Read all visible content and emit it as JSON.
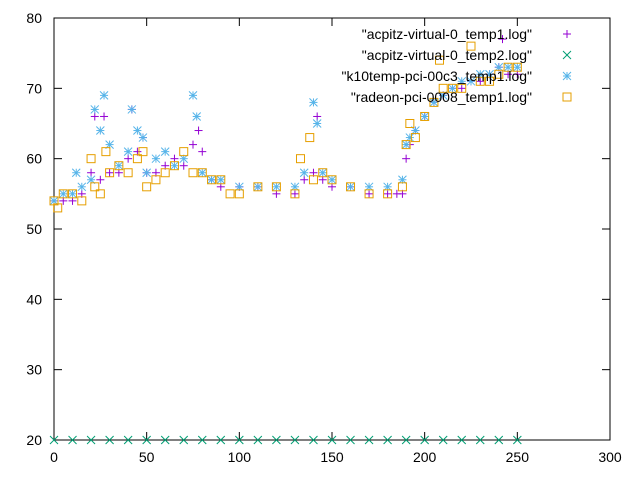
{
  "chart_data": {
    "type": "scatter",
    "title": "",
    "xlabel": "",
    "ylabel": "",
    "xlim": [
      0,
      300
    ],
    "ylim": [
      20,
      80
    ],
    "xticks": [
      0,
      50,
      100,
      150,
      200,
      250,
      300
    ],
    "yticks": [
      20,
      30,
      40,
      50,
      60,
      70,
      80
    ],
    "xtick_labels": [
      "0",
      "50",
      "100",
      "150",
      "200",
      "250",
      "300"
    ],
    "ytick_labels": [
      "20",
      "30",
      "40",
      "50",
      "60",
      "70",
      "80"
    ],
    "grid": false,
    "legend_position": "top-right",
    "series": [
      {
        "name": "\"acpitz-virtual-0_temp1.log\"",
        "marker": "plus",
        "color": "#9400d3",
        "x": [
          0,
          5,
          10,
          15,
          20,
          22,
          25,
          27,
          30,
          35,
          40,
          42,
          45,
          48,
          50,
          55,
          60,
          65,
          70,
          75,
          78,
          80,
          85,
          90,
          100,
          110,
          120,
          130,
          135,
          140,
          142,
          145,
          150,
          160,
          170,
          180,
          185,
          188,
          190,
          192,
          195,
          200,
          205,
          210,
          215,
          220,
          225,
          230,
          235,
          240,
          242,
          245,
          250
        ],
        "y": [
          54,
          54,
          54,
          55,
          58,
          66,
          57,
          66,
          58,
          58,
          60,
          67,
          61,
          63,
          58,
          58,
          59,
          60,
          59,
          62,
          64,
          61,
          57,
          56,
          56,
          56,
          55,
          55,
          57,
          58,
          66,
          57,
          56,
          56,
          55,
          55,
          55,
          55,
          60,
          62,
          64,
          66,
          68,
          69,
          70,
          70,
          71,
          71,
          72,
          73,
          77,
          72,
          72
        ]
      },
      {
        "name": "\"acpitz-virtual-0_temp2.log\"",
        "marker": "x",
        "color": "#009e73",
        "x": [
          0,
          10,
          20,
          30,
          40,
          50,
          60,
          70,
          80,
          90,
          100,
          110,
          120,
          130,
          140,
          150,
          160,
          170,
          180,
          190,
          200,
          210,
          220,
          230,
          240,
          250
        ],
        "y": [
          20,
          20,
          20,
          20,
          20,
          20,
          20,
          20,
          20,
          20,
          20,
          20,
          20,
          20,
          20,
          20,
          20,
          20,
          20,
          20,
          20,
          20,
          20,
          20,
          20,
          20
        ]
      },
      {
        "name": "\"k10temp-pci-00c3_temp1.log\"",
        "marker": "star",
        "color": "#56b4e9",
        "x": [
          0,
          5,
          10,
          12,
          15,
          20,
          22,
          25,
          27,
          30,
          35,
          40,
          42,
          45,
          48,
          50,
          55,
          60,
          65,
          70,
          75,
          77,
          80,
          85,
          90,
          100,
          110,
          120,
          130,
          135,
          140,
          142,
          145,
          150,
          160,
          170,
          180,
          188,
          190,
          192,
          195,
          200,
          205,
          210,
          215,
          220,
          225,
          230,
          235,
          240,
          245,
          250
        ],
        "y": [
          54,
          55,
          55,
          58,
          56,
          57,
          67,
          64,
          69,
          62,
          59,
          61,
          67,
          64,
          63,
          58,
          60,
          61,
          59,
          60,
          69,
          66,
          58,
          57,
          57,
          56,
          56,
          56,
          56,
          58,
          68,
          65,
          58,
          57,
          56,
          56,
          56,
          57,
          62,
          63,
          64,
          66,
          68,
          69,
          70,
          71,
          71,
          72,
          72,
          73,
          73,
          73
        ]
      },
      {
        "name": "\"radeon-pci-0008_temp1.log\"",
        "marker": "square",
        "color": "#e69f00",
        "x": [
          0,
          2,
          5,
          10,
          15,
          20,
          22,
          25,
          28,
          30,
          35,
          40,
          45,
          48,
          50,
          55,
          60,
          65,
          70,
          75,
          80,
          85,
          90,
          95,
          100,
          110,
          120,
          130,
          133,
          138,
          140,
          145,
          150,
          160,
          170,
          180,
          188,
          190,
          192,
          195,
          200,
          205,
          208,
          210,
          215,
          220,
          225,
          230,
          235,
          240,
          245,
          250
        ],
        "y": [
          54,
          53,
          55,
          55,
          54,
          60,
          56,
          55,
          61,
          58,
          59,
          58,
          60,
          61,
          56,
          57,
          58,
          59,
          61,
          58,
          58,
          57,
          57,
          55,
          55,
          56,
          56,
          55,
          60,
          63,
          57,
          58,
          57,
          56,
          55,
          55,
          56,
          62,
          65,
          63,
          66,
          68,
          74,
          70,
          70,
          70,
          76,
          71,
          71,
          72,
          73,
          73
        ]
      }
    ]
  }
}
